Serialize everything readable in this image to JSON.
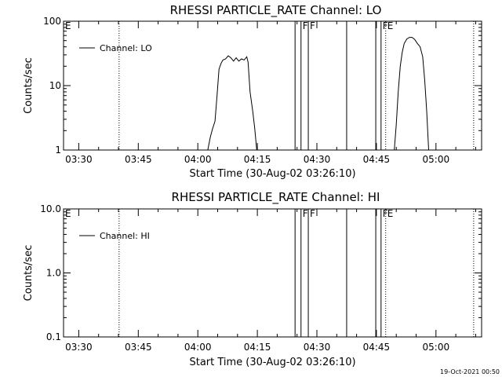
{
  "chart_data": [
    {
      "type": "line",
      "title": "RHESSI PARTICLE_RATE Channel: LO",
      "xlabel": "Start Time (30-Aug-02 03:26:10)",
      "ylabel": "Counts/sec",
      "yscale": "log",
      "ylim": [
        1,
        100
      ],
      "xlim": [
        "03:26:10",
        "05:11:30"
      ],
      "yticks": [
        "1",
        "10",
        "100"
      ],
      "xticks": [
        "03:30",
        "03:45",
        "04:00",
        "04:15",
        "04:30",
        "04:45",
        "05:00"
      ],
      "legend": "top-left",
      "series": [
        {
          "name": "Channel: LO",
          "points": [
            [
              "04:02:30",
              1
            ],
            [
              "04:03:10",
              1.6
            ],
            [
              "04:03:40",
              2.1
            ],
            [
              "04:04:20",
              2.8
            ],
            [
              "04:04:50",
              7
            ],
            [
              "04:05:20",
              18
            ],
            [
              "04:05:50",
              22
            ],
            [
              "04:06:20",
              25
            ],
            [
              "04:07:00",
              26
            ],
            [
              "04:07:40",
              29
            ],
            [
              "04:08:20",
              27
            ],
            [
              "04:09:00",
              24
            ],
            [
              "04:09:40",
              27
            ],
            [
              "04:10:20",
              24
            ],
            [
              "04:11:00",
              26
            ],
            [
              "04:11:40",
              25
            ],
            [
              "04:12:20",
              28
            ],
            [
              "04:12:40",
              23
            ],
            [
              "04:13:10",
              8
            ],
            [
              "04:13:50",
              4
            ],
            [
              "04:14:20",
              2.2
            ],
            [
              "04:14:50",
              1
            ]
          ]
        },
        {
          "name": "Channel: LO",
          "points": [
            [
              "04:49:30",
              1
            ],
            [
              "04:50:00",
              2.5
            ],
            [
              "04:50:30",
              8
            ],
            [
              "04:51:00",
              20
            ],
            [
              "04:51:30",
              33
            ],
            [
              "04:52:00",
              45
            ],
            [
              "04:52:40",
              53
            ],
            [
              "04:53:20",
              56
            ],
            [
              "04:54:00",
              56
            ],
            [
              "04:54:40",
              52
            ],
            [
              "04:55:20",
              45
            ],
            [
              "04:56:00",
              40
            ],
            [
              "04:56:40",
              28
            ],
            [
              "04:57:10",
              12
            ],
            [
              "04:57:40",
              4
            ],
            [
              "04:58:10",
              1
            ]
          ]
        }
      ],
      "flags": [
        {
          "label": "E",
          "times": [
            "03:26:10"
          ]
        },
        {
          "label": "F",
          "times": [
            "04:24:30",
            "04:26:00"
          ]
        },
        {
          "label": "F",
          "times": [
            "04:27:50"
          ]
        },
        {
          "label": "F",
          "times": [
            "04:44:50",
            "04:46:10"
          ]
        },
        {
          "label": "E",
          "times": [
            "04:47:20"
          ]
        }
      ],
      "night_lines": [
        "03:40:10",
        "04:47:20",
        "05:09:30"
      ],
      "solid_lines": [
        "04:37:30"
      ]
    },
    {
      "type": "line",
      "title": "RHESSI PARTICLE_RATE Channel: HI",
      "xlabel": "Start Time (30-Aug-02 03:26:10)",
      "ylabel": "Counts/sec",
      "yscale": "log",
      "ylim": [
        0.1,
        10
      ],
      "xlim": [
        "03:26:10",
        "05:11:30"
      ],
      "yticks": [
        "0.1",
        "1.0",
        "10.0"
      ],
      "xticks": [
        "03:30",
        "03:45",
        "04:00",
        "04:15",
        "04:30",
        "04:45",
        "05:00"
      ],
      "legend": "top-left",
      "series": [
        {
          "name": "Channel: HI",
          "points": []
        }
      ],
      "flags": [
        {
          "label": "E",
          "times": [
            "03:26:10"
          ]
        },
        {
          "label": "F",
          "times": [
            "04:24:30",
            "04:26:00"
          ]
        },
        {
          "label": "F",
          "times": [
            "04:27:50"
          ]
        },
        {
          "label": "F",
          "times": [
            "04:44:50",
            "04:46:10"
          ]
        },
        {
          "label": "E",
          "times": [
            "04:47:20"
          ]
        }
      ],
      "night_lines": [
        "03:40:10",
        "04:47:20",
        "05:09:30"
      ],
      "solid_lines": [
        "04:37:30"
      ]
    }
  ],
  "timestamp": "19-Oct-2021 00:50"
}
